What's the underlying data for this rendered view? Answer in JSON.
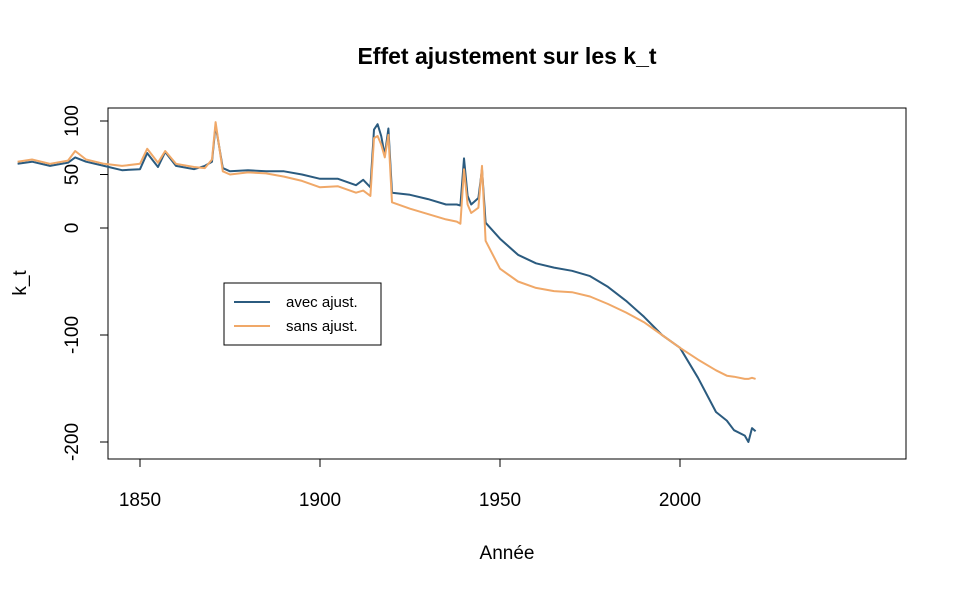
{
  "chart_data": {
    "type": "line",
    "title": "Effet ajustement sur les k_t",
    "xlabel": "Année",
    "ylabel": "k_t",
    "xlim": [
      1816,
      2021
    ],
    "ylim": [
      -200,
      100
    ],
    "xticks": [
      1850,
      1900,
      1950,
      2000
    ],
    "yticks": [
      -200,
      -100,
      0,
      50,
      100
    ],
    "ytick_labels": [
      "-200",
      "-100",
      "0",
      "50",
      "100"
    ],
    "grid": false,
    "legend_position": "left-middle",
    "series": [
      {
        "name": "avec ajust.",
        "color": "#2b5b7f",
        "x": [
          1816,
          1820,
          1825,
          1830,
          1832,
          1835,
          1840,
          1845,
          1850,
          1852,
          1855,
          1857,
          1860,
          1865,
          1868,
          1870,
          1871,
          1873,
          1875,
          1880,
          1885,
          1890,
          1895,
          1900,
          1905,
          1910,
          1912,
          1914,
          1915,
          1916,
          1917,
          1918,
          1919,
          1920,
          1925,
          1930,
          1935,
          1938,
          1939,
          1940,
          1941,
          1942,
          1944,
          1945,
          1946,
          1950,
          1955,
          1960,
          1965,
          1970,
          1975,
          1980,
          1985,
          1990,
          1995,
          2000,
          2005,
          2010,
          2013,
          2015,
          2018,
          2019,
          2020,
          2021
        ],
        "y": [
          60,
          62,
          58,
          61,
          66,
          62,
          58,
          54,
          55,
          70,
          57,
          71,
          58,
          55,
          58,
          62,
          96,
          56,
          53,
          54,
          53,
          53,
          50,
          46,
          46,
          40,
          45,
          38,
          92,
          97,
          86,
          68,
          93,
          33,
          31,
          27,
          22,
          22,
          21,
          65,
          30,
          22,
          28,
          55,
          5,
          -10,
          -25,
          -33,
          -37,
          -40,
          -45,
          -55,
          -68,
          -83,
          -100,
          -112,
          -140,
          -172,
          -180,
          -189,
          -194,
          -200,
          -187,
          -190
        ]
      },
      {
        "name": "sans ajust.",
        "color": "#f0a868",
        "x": [
          1816,
          1820,
          1825,
          1830,
          1832,
          1835,
          1840,
          1845,
          1850,
          1852,
          1855,
          1857,
          1860,
          1865,
          1868,
          1870,
          1871,
          1873,
          1875,
          1880,
          1885,
          1890,
          1895,
          1900,
          1905,
          1910,
          1912,
          1914,
          1915,
          1916,
          1917,
          1918,
          1919,
          1920,
          1925,
          1930,
          1935,
          1938,
          1939,
          1940,
          1941,
          1942,
          1944,
          1945,
          1946,
          1950,
          1955,
          1960,
          1965,
          1970,
          1975,
          1980,
          1985,
          1990,
          1995,
          2000,
          2005,
          2010,
          2013,
          2015,
          2018,
          2019,
          2020,
          2021
        ],
        "y": [
          62,
          64,
          60,
          63,
          72,
          64,
          60,
          58,
          60,
          74,
          61,
          72,
          60,
          57,
          56,
          64,
          99,
          53,
          50,
          52,
          51,
          48,
          44,
          38,
          39,
          33,
          35,
          30,
          84,
          86,
          78,
          66,
          87,
          24,
          18,
          13,
          8,
          6,
          4,
          55,
          22,
          14,
          19,
          58,
          -12,
          -38,
          -50,
          -56,
          -59,
          -60,
          -64,
          -71,
          -79,
          -88,
          -100,
          -112,
          -123,
          -133,
          -138,
          -139,
          -141,
          -141,
          -140,
          -141
        ]
      }
    ]
  }
}
